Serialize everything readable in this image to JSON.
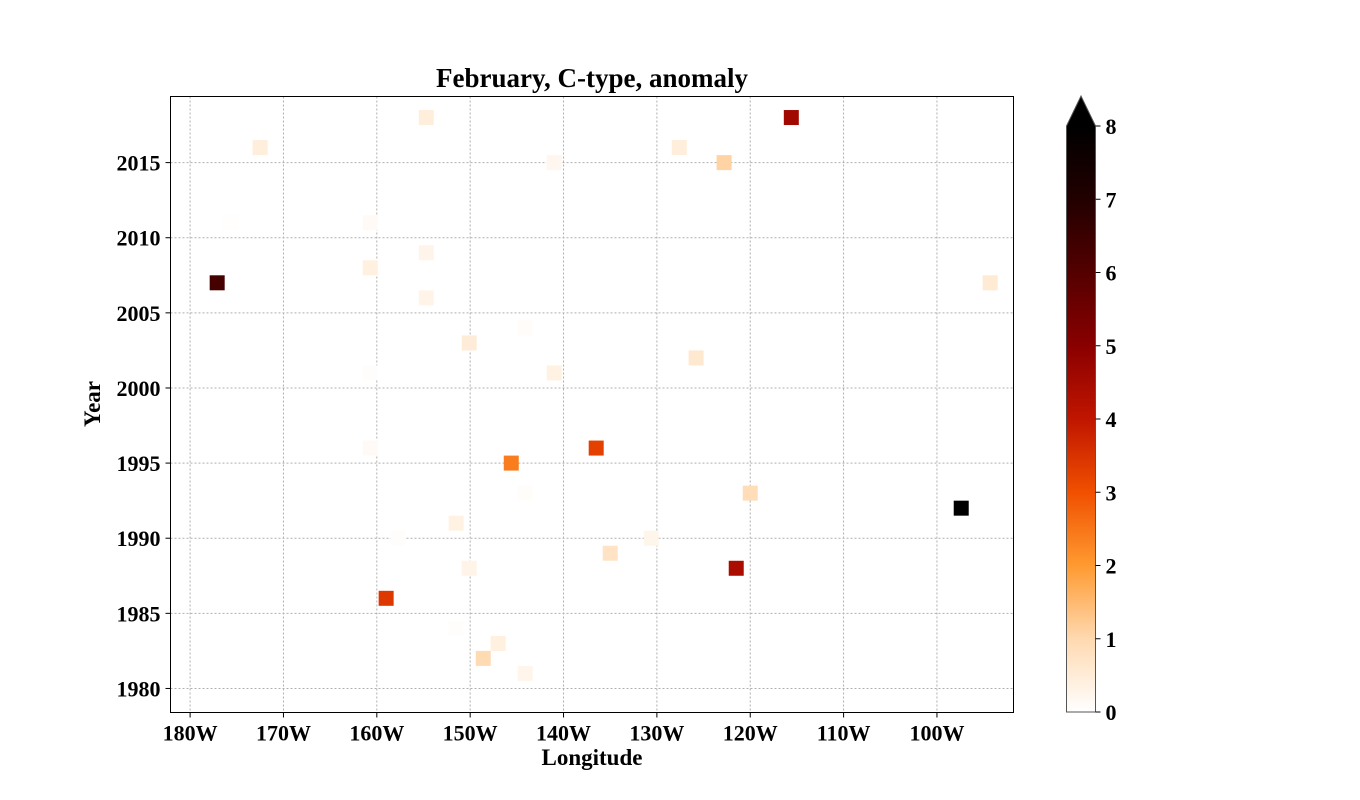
{
  "chart_data": {
    "type": "heatmap",
    "title": "February, C-type, anomaly",
    "xlabel": "Longitude",
    "ylabel": "Year",
    "xlim": [
      -182.1,
      -91.8
    ],
    "ylim": [
      1978.4,
      2019.4
    ],
    "x_ticks": [
      {
        "value": -180,
        "label": "180W"
      },
      {
        "value": -170,
        "label": "170W"
      },
      {
        "value": -160,
        "label": "160W"
      },
      {
        "value": -150,
        "label": "150W"
      },
      {
        "value": -140,
        "label": "140W"
      },
      {
        "value": -130,
        "label": "130W"
      },
      {
        "value": -120,
        "label": "120W"
      },
      {
        "value": -110,
        "label": "110W"
      },
      {
        "value": -100,
        "label": "100W"
      }
    ],
    "y_ticks": [
      {
        "value": 1980,
        "label": "1980"
      },
      {
        "value": 1985,
        "label": "1985"
      },
      {
        "value": 1990,
        "label": "1990"
      },
      {
        "value": 1995,
        "label": "1995"
      },
      {
        "value": 2000,
        "label": "2000"
      },
      {
        "value": 2005,
        "label": "2005"
      },
      {
        "value": 2010,
        "label": "2010"
      },
      {
        "value": 2015,
        "label": "2015"
      }
    ],
    "grid": true,
    "colorbar": {
      "min": 0,
      "max": 8,
      "extend": "max",
      "colormap": "gist_heat_r",
      "ticks": [
        {
          "value": 0,
          "label": "0"
        },
        {
          "value": 1,
          "label": "1"
        },
        {
          "value": 2,
          "label": "2"
        },
        {
          "value": 3,
          "label": "3"
        },
        {
          "value": 4,
          "label": "4"
        },
        {
          "value": 5,
          "label": "5"
        },
        {
          "value": 6,
          "label": "6"
        },
        {
          "value": 7,
          "label": "7"
        },
        {
          "value": 8,
          "label": "8"
        }
      ]
    },
    "points": [
      {
        "lon": -154.7,
        "year": 2018,
        "value": 0.45
      },
      {
        "lon": -115.6,
        "year": 2018,
        "value": 4.6
      },
      {
        "lon": -172.5,
        "year": 2016,
        "value": 0.45
      },
      {
        "lon": -127.6,
        "year": 2016,
        "value": 0.45
      },
      {
        "lon": -141.0,
        "year": 2015,
        "value": 0.2
      },
      {
        "lon": -122.8,
        "year": 2015,
        "value": 1.1
      },
      {
        "lon": -175.6,
        "year": 2011,
        "value": 0.03
      },
      {
        "lon": -160.7,
        "year": 2011,
        "value": 0.12
      },
      {
        "lon": -154.7,
        "year": 2009,
        "value": 0.28
      },
      {
        "lon": -160.7,
        "year": 2008,
        "value": 0.4
      },
      {
        "lon": -177.1,
        "year": 2007,
        "value": 6.3
      },
      {
        "lon": -94.3,
        "year": 2007,
        "value": 0.55
      },
      {
        "lon": -154.7,
        "year": 2006,
        "value": 0.3
      },
      {
        "lon": -144.1,
        "year": 2004,
        "value": 0.08
      },
      {
        "lon": -150.1,
        "year": 2003,
        "value": 0.5
      },
      {
        "lon": -125.8,
        "year": 2002,
        "value": 0.6
      },
      {
        "lon": -160.7,
        "year": 2001,
        "value": 0.05
      },
      {
        "lon": -141.0,
        "year": 2001,
        "value": 0.35
      },
      {
        "lon": -160.7,
        "year": 1996,
        "value": 0.12
      },
      {
        "lon": -136.5,
        "year": 1996,
        "value": 3.25
      },
      {
        "lon": -145.6,
        "year": 1995,
        "value": 2.4
      },
      {
        "lon": -144.1,
        "year": 1993,
        "value": 0.06
      },
      {
        "lon": -120.0,
        "year": 1993,
        "value": 0.9
      },
      {
        "lon": -97.4,
        "year": 1992,
        "value": 8.2
      },
      {
        "lon": -151.5,
        "year": 1991,
        "value": 0.35
      },
      {
        "lon": -157.7,
        "year": 1990,
        "value": 0.05
      },
      {
        "lon": -130.6,
        "year": 1990,
        "value": 0.25
      },
      {
        "lon": -135.0,
        "year": 1989,
        "value": 0.75
      },
      {
        "lon": -150.1,
        "year": 1988,
        "value": 0.3
      },
      {
        "lon": -121.5,
        "year": 1988,
        "value": 4.4
      },
      {
        "lon": -159.0,
        "year": 1986,
        "value": 3.4
      },
      {
        "lon": -151.5,
        "year": 1984,
        "value": 0.04
      },
      {
        "lon": -147.0,
        "year": 1983,
        "value": 0.4
      },
      {
        "lon": -148.6,
        "year": 1982,
        "value": 0.95
      },
      {
        "lon": -144.1,
        "year": 1981,
        "value": 0.25
      }
    ]
  }
}
